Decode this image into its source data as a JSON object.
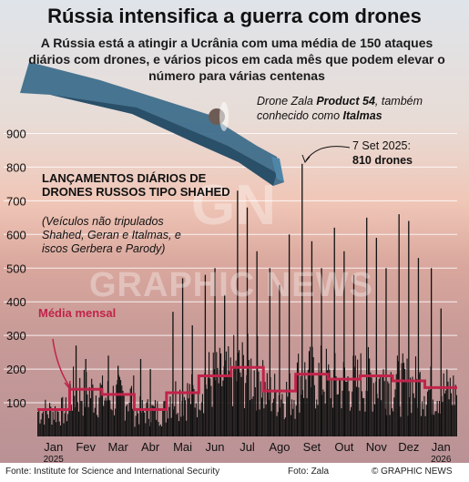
{
  "title": "Rússia intensifica a guerra com drones",
  "subtitle": "A Rússia está a atingir a Ucrânia com uma média de 150 ataques diários com drones, e vários picos em cada mês que podem elevar o número para várias centenas",
  "drone_caption": {
    "prefix": "Drone Zala ",
    "model": "Product 54",
    "middle": ", também conhecido como ",
    "alias": "Italmas"
  },
  "peak_annotation": {
    "date": "7 Set 2025:",
    "value": "810 drones"
  },
  "chart_heading": "LANÇAMENTOS DIÁRIOS DE DRONES RUSSOS TIPO SHAHED",
  "chart_note": "(Veículos não tripulados Shahed, Geran e Italmas, e iscos Gerbera e Parody)",
  "monthly_label": "Média mensal",
  "watermark": {
    "line1": "GN",
    "line2": "GRAPHIC NEWS"
  },
  "footer": {
    "source": "Fonte: Institute for Science and International Security",
    "photo": "Foto: Zala",
    "credit": "© GRAPHIC NEWS"
  },
  "colors": {
    "bars": "#111111",
    "monthly_avg": "#c0244a",
    "grid": "#ffffff"
  },
  "icons": {
    "drone": "drone-illustration"
  },
  "chart_data": {
    "type": "bar",
    "ylim": [
      0,
      950
    ],
    "yticks": [
      100,
      200,
      300,
      400,
      500,
      600,
      700,
      800,
      900
    ],
    "grid": true,
    "categories": [
      "Jan",
      "Fev",
      "Mar",
      "Abr",
      "Mai",
      "Jun",
      "Jul",
      "Ago",
      "Set",
      "Out",
      "Nov",
      "Dez",
      "Jan"
    ],
    "year_labels": [
      {
        "month_index": 0,
        "text": "2025"
      },
      {
        "month_index": 12,
        "text": "2026"
      }
    ],
    "series": [
      {
        "name": "Média mensal",
        "values": [
          80,
          140,
          125,
          80,
          130,
          180,
          205,
          135,
          185,
          170,
          180,
          165,
          145
        ]
      }
    ],
    "peaks": [
      {
        "month_index": 1,
        "values": [
          270,
          230
        ]
      },
      {
        "month_index": 2,
        "values": [
          240,
          210
        ]
      },
      {
        "month_index": 3,
        "values": [
          230,
          200
        ]
      },
      {
        "month_index": 4,
        "values": [
          370,
          470,
          330
        ]
      },
      {
        "month_index": 5,
        "values": [
          480,
          500,
          420
        ]
      },
      {
        "month_index": 6,
        "values": [
          730,
          680,
          550
        ]
      },
      {
        "month_index": 7,
        "values": [
          500,
          450,
          600
        ]
      },
      {
        "month_index": 8,
        "values": [
          810,
          580,
          500
        ]
      },
      {
        "month_index": 9,
        "values": [
          620,
          550,
          480
        ]
      },
      {
        "month_index": 10,
        "values": [
          650,
          590,
          500
        ]
      },
      {
        "month_index": 11,
        "values": [
          660,
          640,
          530
        ]
      },
      {
        "month_index": 12,
        "values": [
          500,
          380
        ]
      }
    ],
    "peak_annotation_value": 810
  }
}
